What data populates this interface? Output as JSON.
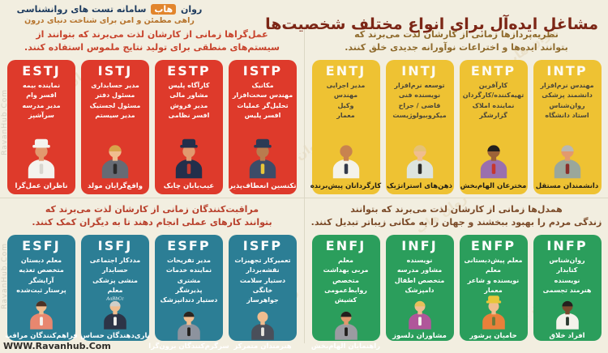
{
  "header": {
    "title": "مشاغل ایده‌آل برای انواع مختلف شخصیت‌ها",
    "logo": {
      "brand_prefix": "روان",
      "brand_highlight": "هاب",
      "brand_suffix": "سامانه تست های روانشناسی",
      "tagline": "راهی مطمئن و امن برای شناخت دنیای درون"
    }
  },
  "footer": {
    "url": "WWW.Ravanhub.Com"
  },
  "watermark": {
    "brand": "روان هاب",
    "site": "RavanHub.Com"
  },
  "colors": {
    "background": "#f2eee0",
    "title": "#7c2616",
    "divider": "#dcd7c5",
    "red_card": "#de3a2b",
    "yellow_card": "#eec233",
    "teal_card": "#2c7e95",
    "green_card": "#2b9e5c"
  },
  "quadrants": [
    {
      "id": "practical",
      "description_lines": [
        "عمل‌گراها زمانی از کارشان لذت می‌برند که بتوانند از",
        "سیستم‌های منطقی برای تولید نتایج ملموس استفاده کنند."
      ],
      "colors": {
        "description": "#c8432c",
        "card": "#de3a2b",
        "type": "#ffffff",
        "jobs": "#ffffff",
        "label": "#ffffff"
      },
      "cards": [
        {
          "type": "ESTJ",
          "jobs": [
            "نماینده بیمه",
            "افسر وام",
            "مدیر مدرسه",
            "سرآشپز"
          ],
          "label": "ناظران عمل‌گرا",
          "character": {
            "role": "chef",
            "skin": "#e2996e",
            "hat": "#f4f3ee",
            "shirt": "#f4f3ee",
            "accent": "#d8d6cf"
          }
        },
        {
          "type": "ISTJ",
          "jobs": [
            "مدیر حسابداری",
            "مسئول دفتر",
            "مسئول لجستیک",
            "مدیر سیستم"
          ],
          "label": "واقع‌گرایان مولد",
          "character": {
            "role": "system-admin-with-laptop",
            "skin": "#f0bd8f",
            "hair": "#d8a44a",
            "shirt": "#666b74",
            "accent": "#2b2b2b"
          }
        },
        {
          "type": "ESTP",
          "jobs": [
            "کارآگاه پلیس",
            "مشاور مالی",
            "مدیر فروش",
            "افسر نظامی"
          ],
          "label": "عیب‌یابان چابک",
          "character": {
            "role": "saluting-military-officer",
            "skin": "#e2996e",
            "hat": "#232f4b",
            "shirt": "#232f4b",
            "accent": "#c53a2e"
          }
        },
        {
          "type": "ISTP",
          "jobs": [
            "مکانیک",
            "مهندس سخت‌افزار",
            "تحلیل‌گر عملیات",
            "افسر پلیس"
          ],
          "label": "تکنسین انعطاف‌پذیر",
          "character": {
            "role": "police-officer",
            "skin": "#b97c4e",
            "hat": "#2c3a55",
            "shirt": "#3c4c68",
            "accent": "#e8c63a"
          }
        }
      ]
    },
    {
      "id": "theorists",
      "description_lines": [
        "نظریه‌پردازها زمانی از کارشان لذت می‌برند که",
        "بتوانند ایده‌ها و اختراعات نوآورانه جدیدی خلق کنند."
      ],
      "colors": {
        "description": "#8f6b2d",
        "card": "#eec233",
        "type": "#fdfbf2",
        "jobs": "#4a4638",
        "label": "#201d15"
      },
      "cards": [
        {
          "type": "ENTJ",
          "jobs": [
            "مدیر اجرایی",
            "مهندس",
            "وکیل",
            "معمار"
          ],
          "label": "کارگردانان پیش‌برنده",
          "character": {
            "role": "executive-in-white-coat",
            "skin": "#c8834f",
            "shirt": "#f4f2ea",
            "accent": "#33394a"
          }
        },
        {
          "type": "INTJ",
          "jobs": [
            "توسعه نرم‌افزار",
            "نویسنده فنی",
            "قاضی / جراح",
            "میکروبیولوژیست"
          ],
          "label": "ذهن‌های استراتژیک",
          "character": {
            "role": "scientist-with-microscope",
            "skin": "#f0bd8f",
            "hair": "#e5c276",
            "shirt": "#dde4df",
            "accent": "#2b2b2b"
          }
        },
        {
          "type": "ENTP",
          "jobs": [
            "کارآفرین",
            "تهیه‌کننده/کارگردان",
            "نماینده املاک",
            "گزارشگر"
          ],
          "label": "مخترعان الهام‌بخش",
          "character": {
            "role": "tv-reporter",
            "skin": "#9c6238",
            "hair": "#23201e",
            "shirt": "#9a6fae",
            "accent": "#c5362e"
          }
        },
        {
          "type": "INTP",
          "jobs": [
            "مهندس نرم‌افزار",
            "دانشمند پزشکی",
            "روان‌شناس",
            "استاد دانشگاه"
          ],
          "label": "دانشمندان مستقل",
          "character": {
            "role": "professor",
            "skin": "#e2996e",
            "hair": "#b9b8b2",
            "shirt": "#9aa79b",
            "accent": "#8a2f2a"
          }
        }
      ]
    },
    {
      "id": "caretakers",
      "description_lines": [
        "مراقبت‌کنندگان زمانی از کارشان لذت می‌برند که",
        "بتوانند کارهای عملی انجام دهند تا به دیگران کمک کنند."
      ],
      "colors": {
        "description": "#b8402c",
        "card": "#2c7e95",
        "type": "#ffffff",
        "jobs": "#ffffff",
        "label": "#ffffff"
      },
      "cards": [
        {
          "type": "ESFJ",
          "jobs": [
            "معلم دبستان",
            "متخصص تغذیه",
            "آرایشگر",
            "پرستار ثبت‌شده"
          ],
          "label": "فراهم‌کنندگان مراقب",
          "character": {
            "role": "nurse",
            "skin": "#f0bd8f",
            "hair": "#4a3226",
            "shirt": "#e8876f",
            "accent": "#f4f3ee"
          }
        },
        {
          "type": "ISFJ",
          "jobs": [
            "مددکار اجتماعی",
            "حسابدار",
            "منشی پزشکی",
            "معلم"
          ],
          "label": "یاری‌دهندگان حساس",
          "character": {
            "role": "teacher-writing",
            "skin": "#f0bd8f",
            "hair": "#cfcec8",
            "shirt": "#2d3447",
            "accent": "#f4f3ee",
            "prop_text": "AaBbCc"
          }
        },
        {
          "type": "ESFP",
          "jobs": [
            "مدیر تفریحات",
            "نماینده خدمات مشتری",
            "پذیرشگر",
            "دستیار دندانپزشک"
          ],
          "label": "سرگرم‌کنندگان برون‌گرا",
          "character": {
            "role": "bartender",
            "skin": "#f0bd8f",
            "hair": "#2b2520",
            "shirt": "#8d939e",
            "accent": "#23201e"
          }
        },
        {
          "type": "ISFP",
          "jobs": [
            "تعمیرکار تجهیزات",
            "نقشه‌بردار",
            "دستیار سلامت خانگی",
            "جواهرساز"
          ],
          "label": "هنرمندان متمرکز",
          "character": {
            "role": "jeweler",
            "skin": "#f0bd8f",
            "shirt": "#4a4f5a",
            "accent": "#e8e6df"
          }
        }
      ]
    },
    {
      "id": "empaths",
      "description_lines": [
        "همدل‌ها زمانی از کارشان لذت می‌برند که بتوانند",
        "زندگی مردم را بهبود ببخشند و جهان را به مکانی زیباتر تبدیل کنند."
      ],
      "colors": {
        "description": "#7a4a28",
        "card": "#2b9e5c",
        "type": "#ffffff",
        "jobs": "#ffffff",
        "label": "#ffffff"
      },
      "cards": [
        {
          "type": "ENFJ",
          "jobs": [
            "معلم",
            "مربی بهداشت",
            "متخصص روابط‌عمومی",
            "کشیش"
          ],
          "label": "راهنمایان الهام‌بخش",
          "character": {
            "role": "priest",
            "skin": "#e2996e",
            "hair": "#23201e",
            "shirt": "#9b9ba1",
            "accent": "#23201e"
          }
        },
        {
          "type": "INFJ",
          "jobs": [
            "نویسنده",
            "مشاور مدرسه",
            "متخصص اطفال",
            "دامپزشک"
          ],
          "label": "مشاوران دلسوز",
          "character": {
            "role": "veterinarian-with-dog",
            "skin": "#f0bd8f",
            "hair": "#e6c05a",
            "shirt": "#b0569a",
            "accent": "#f4f3ee"
          }
        },
        {
          "type": "ENFP",
          "jobs": [
            "معلم پیش‌دبستانی",
            "معلم",
            "نویسنده و شاعر",
            "معمار"
          ],
          "label": "حامیان پرشور",
          "character": {
            "role": "gardener-planting-tree",
            "skin": "#f0bd8f",
            "hat": "#e8c63a",
            "shirt": "#e8803a",
            "accent": "#6a7a3a"
          }
        },
        {
          "type": "INFP",
          "jobs": [
            "روان‌شناس",
            "کتابدار",
            "نویسنده",
            "هنرمند تجسمی"
          ],
          "label": "افراد خلاق",
          "character": {
            "role": "visual-artist",
            "skin": "#7a4a2e",
            "hair": "#23201e",
            "shirt": "#f4f2ea",
            "accent": "#2b3a2e"
          }
        }
      ]
    }
  ]
}
